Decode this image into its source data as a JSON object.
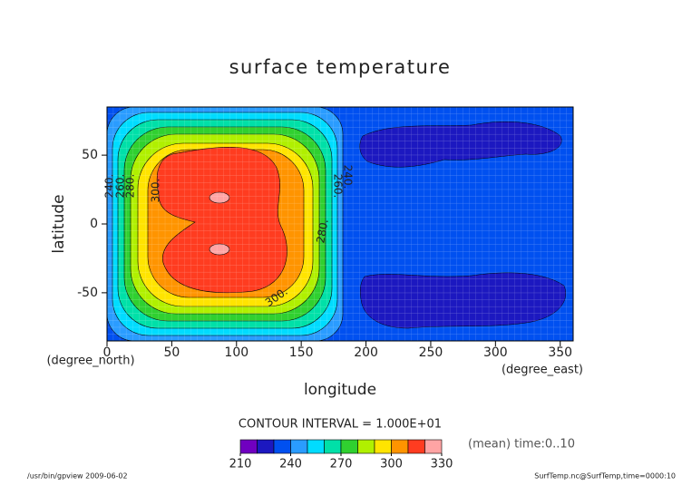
{
  "chart_data": {
    "type": "contour",
    "title": "surface temperature",
    "xlabel": "longitude",
    "ylabel": "latitude",
    "xunit": "(degree_east)",
    "yunit": "(degree_north)",
    "xlim": [
      0,
      360
    ],
    "ylim": [
      -85,
      85
    ],
    "xticks": [
      0,
      50,
      100,
      150,
      200,
      250,
      300,
      350
    ],
    "yticks": [
      -50,
      0,
      50
    ],
    "contour_labels": [
      "240.",
      "260.",
      "280.",
      "300.",
      "260.",
      "240.",
      "280.",
      "300."
    ],
    "contour_interval_label": "CONTOUR INTERVAL = 1.000E+01",
    "colorbar": {
      "levels": [
        210,
        220,
        230,
        240,
        250,
        260,
        270,
        280,
        290,
        300,
        310,
        320,
        330
      ],
      "colors": [
        "#7000c0",
        "#1c18c0",
        "#0050f0",
        "#2a9cff",
        "#00dcff",
        "#00e0a8",
        "#30d030",
        "#b0f000",
        "#ffe400",
        "#ff9400",
        "#ff3c20",
        "#ffa4a4"
      ],
      "ticks": [
        210,
        240,
        270,
        300,
        330
      ]
    },
    "note": "(mean) time:0..10",
    "footer_left": "/usr/bin/gpview  2009-06-02",
    "footer_right": "SurfTemp.nc@SurfTemp,time=0000:10"
  }
}
